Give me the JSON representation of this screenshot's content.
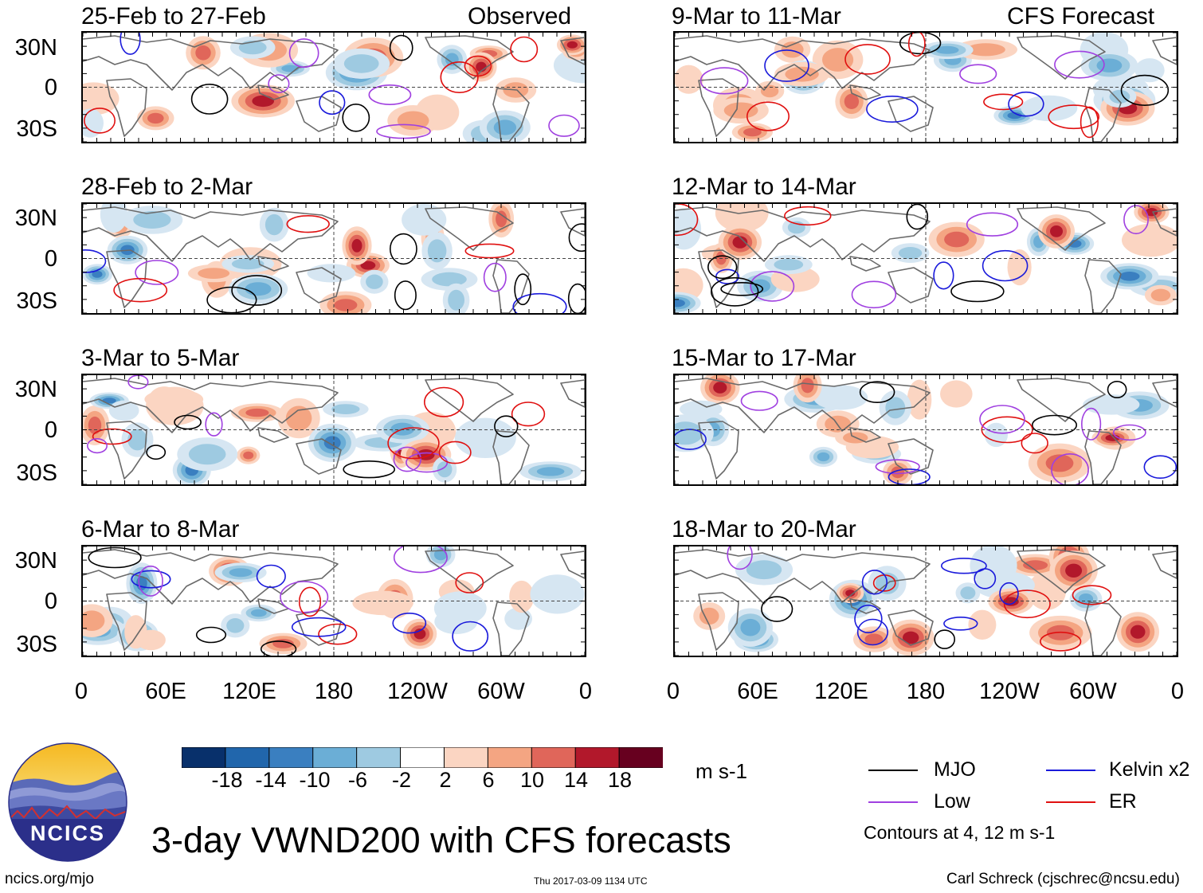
{
  "colors": {
    "mjo": "#000000",
    "kelvin": "#1a1adb",
    "low": "#a040e0",
    "er": "#e01010",
    "land": "#6a6a6a",
    "scale": [
      "#08306b",
      "#2166ac",
      "#3a7fc0",
      "#6baed6",
      "#9ecae1",
      "#d6e6f2",
      "#ffffff",
      "#fbd5c2",
      "#f4a582",
      "#e0665a",
      "#b2182b",
      "#67001f"
    ]
  },
  "chart_data": {
    "type": "heatmap",
    "title": "3-day VWND200 with CFS forecasts",
    "variable": "VWND200",
    "units": "m s-1",
    "colorbar": {
      "ticks": [
        "-18",
        "-14",
        "-10",
        "-6",
        "-2",
        "2",
        "6",
        "10",
        "14",
        "18"
      ],
      "units_label": "m s-1"
    },
    "x_ticks": [
      "0",
      "60E",
      "120E",
      "180",
      "120W",
      "60W",
      "0"
    ],
    "y_ticks": [
      "30N",
      "0",
      "30S"
    ],
    "columns": [
      {
        "label": "Observed",
        "panels": [
          "25-Feb to 27-Feb",
          "28-Feb to 2-Mar",
          "3-Mar to 5-Mar",
          "6-Mar to 8-Mar"
        ]
      },
      {
        "label": "CFS Forecast",
        "panels": [
          "9-Mar to 11-Mar",
          "12-Mar to 14-Mar",
          "15-Mar to 17-Mar",
          "18-Mar to 20-Mar"
        ]
      }
    ],
    "legend": [
      {
        "name": "MJO",
        "color_key": "mjo"
      },
      {
        "name": "Kelvin x2",
        "color_key": "kelvin"
      },
      {
        "name": "Low",
        "color_key": "low"
      },
      {
        "name": "ER",
        "color_key": "er"
      }
    ],
    "contour_note": "Contours at 4, 12 m s-1"
  },
  "footer": {
    "logo_text": "NCICS",
    "url": "ncics.org/mjo",
    "timestamp": "Thu 2017-03-09 1134 UTC",
    "credit": "Carl Schreck (cjschrec@ncsu.edu)"
  }
}
